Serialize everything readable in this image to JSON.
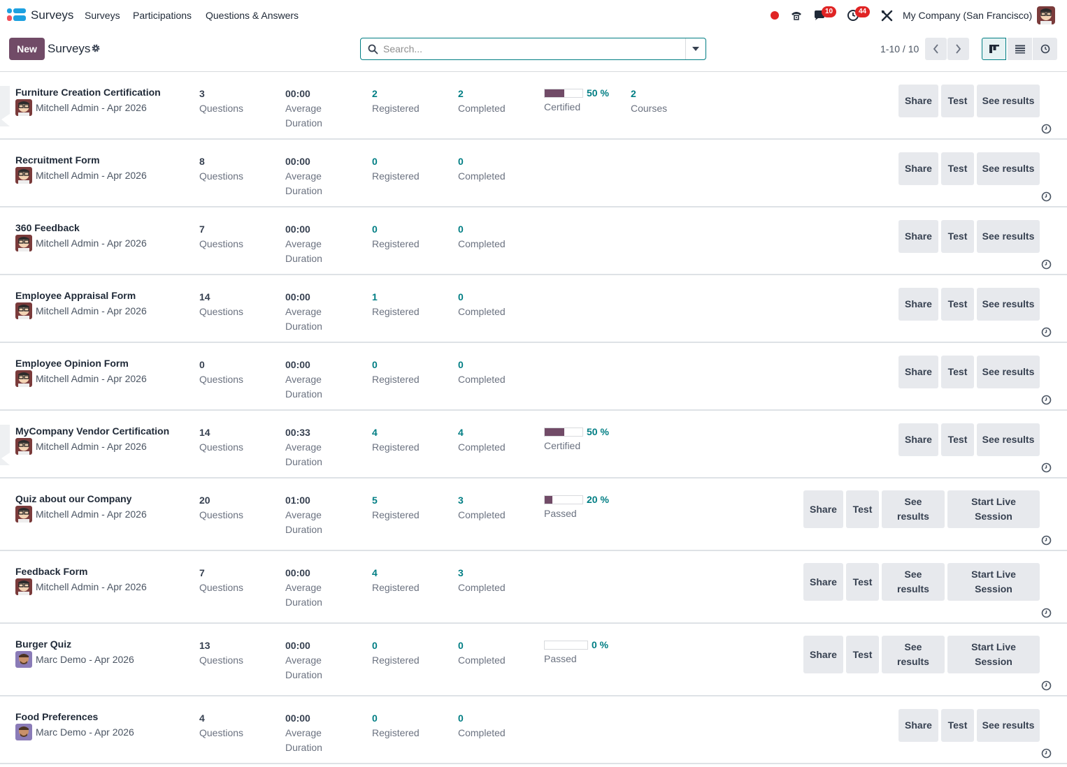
{
  "navbar": {
    "app_name": "Surveys",
    "menu": [
      "Surveys",
      "Participations",
      "Questions & Answers"
    ],
    "messages_count": "10",
    "activities_count": "44",
    "company": "My Company (San Francisco)"
  },
  "control": {
    "new_label": "New",
    "breadcrumb": "Surveys",
    "search_placeholder": "Search...",
    "pager": "1-10 / 10"
  },
  "labels": {
    "questions": "Questions",
    "average": "Average",
    "duration": "Duration",
    "registered": "Registered",
    "completed": "Completed",
    "courses": "Courses",
    "share": "Share",
    "test": "Test",
    "see_results": "See results",
    "see": "See",
    "results": "results",
    "start_live": "Start Live",
    "session": "Session"
  },
  "surveys": [
    {
      "title": "Furniture Creation Certification",
      "owner": "Mitchell Admin - Apr 2026",
      "questions": "3",
      "duration": "00:00",
      "registered": "2",
      "completed": "2",
      "progress": {
        "value": 50,
        "text": "50 %",
        "label": "Certified"
      },
      "courses": "2"
    },
    {
      "title": "Recruitment Form",
      "owner": "Mitchell Admin - Apr 2026",
      "questions": "8",
      "duration": "00:00",
      "registered": "0",
      "completed": "0"
    },
    {
      "title": "360 Feedback",
      "owner": "Mitchell Admin - Apr 2026",
      "questions": "7",
      "duration": "00:00",
      "registered": "0",
      "completed": "0"
    },
    {
      "title": "Employee Appraisal Form",
      "owner": "Mitchell Admin - Apr 2026",
      "questions": "14",
      "duration": "00:00",
      "registered": "1",
      "completed": "0"
    },
    {
      "title": "Employee Opinion Form",
      "owner": "Mitchell Admin - Apr 2026",
      "questions": "0",
      "duration": "00:00",
      "registered": "0",
      "completed": "0"
    },
    {
      "title": "MyCompany Vendor Certification",
      "owner": "Mitchell Admin - Apr 2026",
      "questions": "14",
      "duration": "00:33",
      "registered": "4",
      "completed": "4",
      "progress": {
        "value": 50,
        "text": "50 %",
        "label": "Certified"
      }
    },
    {
      "title": "Quiz about our Company",
      "owner": "Mitchell Admin - Apr 2026",
      "questions": "20",
      "duration": "01:00",
      "registered": "5",
      "completed": "3",
      "progress": {
        "value": 20,
        "text": "20 %",
        "label": "Passed"
      }
    },
    {
      "title": "Feedback Form",
      "owner": "Mitchell Admin - Apr 2026",
      "questions": "7",
      "duration": "00:00",
      "registered": "4",
      "completed": "3"
    },
    {
      "title": "Burger Quiz",
      "owner": "Marc Demo - Apr 2026",
      "questions": "13",
      "duration": "00:00",
      "registered": "0",
      "completed": "0",
      "progress": {
        "value": 0,
        "text": "0 %",
        "label": "Passed"
      }
    },
    {
      "title": "Food Preferences",
      "owner": "Marc Demo - Apr 2026",
      "questions": "4",
      "duration": "00:00",
      "registered": "0",
      "completed": "0"
    }
  ]
}
